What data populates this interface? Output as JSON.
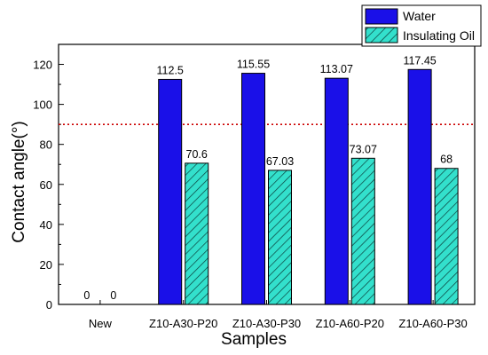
{
  "chart_data": {
    "type": "bar",
    "categories": [
      "New",
      "Z10-A30-P20",
      "Z10-A30-P30",
      "Z10-A60-P20",
      "Z10-A60-P30"
    ],
    "series": [
      {
        "name": "Water",
        "values": [
          0,
          112.5,
          115.55,
          113.07,
          117.45
        ],
        "labels": [
          "0",
          "112.5",
          "115.55",
          "113.07",
          "117.45"
        ],
        "color": "#1a10e8",
        "pattern": "solid"
      },
      {
        "name": "Insulating Oil",
        "values": [
          0,
          70.6,
          67.03,
          73.07,
          68
        ],
        "labels": [
          "0",
          "70.6",
          "67.03",
          "73.07",
          "68"
        ],
        "color": "#33e0cc",
        "pattern": "diagonal-hatch"
      }
    ],
    "title": "",
    "xlabel": "Samples",
    "ylabel": "Contact angle(°)",
    "ylim": [
      0,
      130
    ],
    "yticks": [
      0,
      20,
      40,
      60,
      80,
      100,
      120
    ],
    "reference_line": {
      "y": 90,
      "color": "#cc0000",
      "style": "dotted"
    },
    "grid": false,
    "legend_position": "top-right"
  }
}
